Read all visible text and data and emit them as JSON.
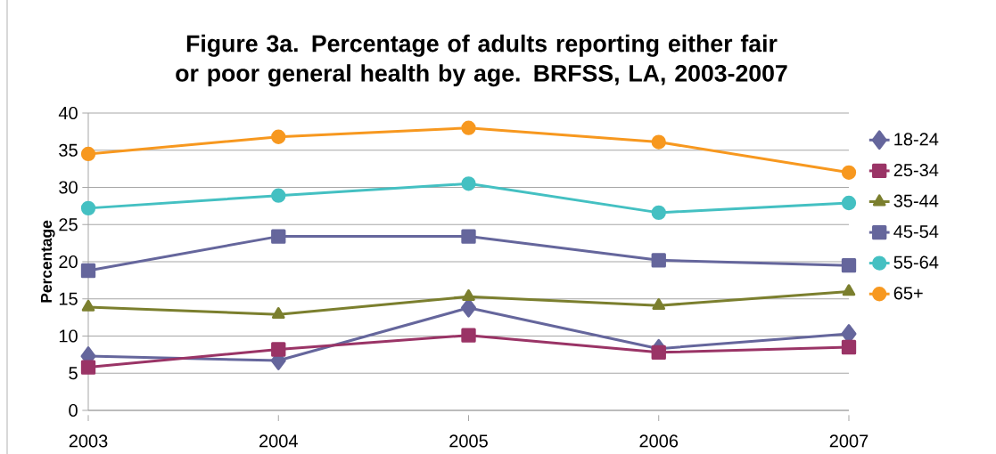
{
  "chart_data": {
    "type": "line",
    "title": "Figure 3a.  Percentage of adults reporting either fair or poor general health by age. BRFSS, LA, 2003-2007",
    "ylabel": "Percentage",
    "categories": [
      "2003",
      "2004",
      "2005",
      "2006",
      "2007"
    ],
    "series": [
      {
        "name": "18-24",
        "color": "#65669c",
        "marker": "diamond",
        "values": [
          7.3,
          6.7,
          13.8,
          8.3,
          10.3
        ]
      },
      {
        "name": "25-34",
        "color": "#9a3466",
        "marker": "square",
        "values": [
          5.8,
          8.2,
          10.1,
          7.8,
          8.5
        ]
      },
      {
        "name": "35-44",
        "color": "#7b7f2e",
        "marker": "triangle",
        "values": [
          13.9,
          12.9,
          15.3,
          14.1,
          16.0
        ]
      },
      {
        "name": "45-54",
        "color": "#65669c",
        "marker": "square",
        "values": [
          18.8,
          23.4,
          23.4,
          20.2,
          19.5
        ]
      },
      {
        "name": "55-64",
        "color": "#44c0c2",
        "marker": "circle",
        "values": [
          27.2,
          28.9,
          30.5,
          26.6,
          27.9
        ]
      },
      {
        "name": "65+",
        "color": "#f7981f",
        "marker": "circle",
        "values": [
          34.5,
          36.8,
          38.0,
          36.1,
          32.0
        ]
      }
    ],
    "ylim": [
      0,
      40
    ],
    "yticks": [
      0,
      5,
      10,
      15,
      20,
      25,
      30,
      35,
      40
    ],
    "grid": "y",
    "legend": "right",
    "line_style": "solid"
  }
}
